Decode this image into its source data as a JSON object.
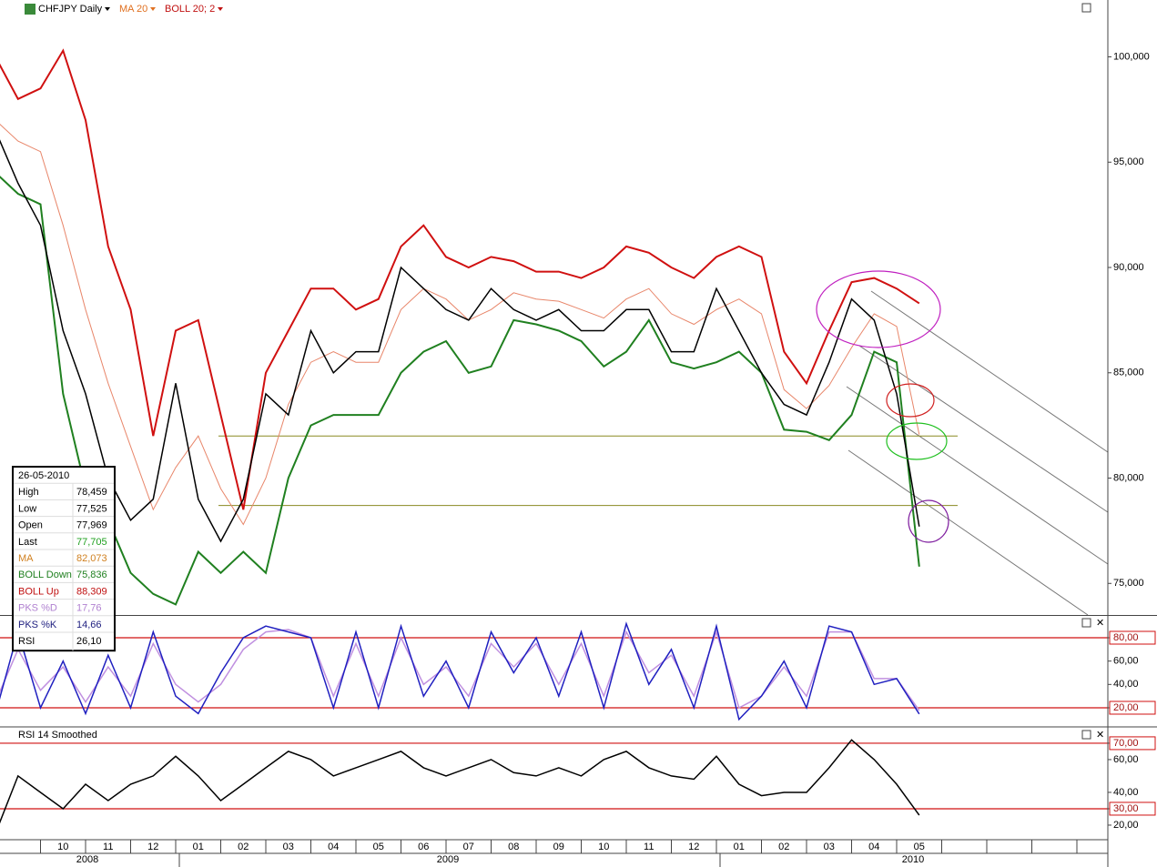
{
  "toolbar": {
    "symbol": "CHFJPY Daily",
    "indicators": [
      "MA 20",
      "BOLL 20; 2"
    ]
  },
  "data_window": {
    "date": "26-05-2010",
    "rows": [
      [
        "High",
        "78,459"
      ],
      [
        "Low",
        "77,525"
      ],
      [
        "Open",
        "77,969"
      ],
      [
        "Last",
        "77,705"
      ],
      [
        "MA",
        "82,073"
      ],
      [
        "BOLL Down",
        "75,836"
      ],
      [
        "BOLL Up",
        "88,309"
      ],
      [
        "PKS %D",
        "17,76"
      ],
      [
        "PKS %K",
        "14,66"
      ],
      [
        "RSI",
        "26,10"
      ]
    ]
  },
  "time_axis": {
    "years": [
      "2008",
      "2009",
      "2010"
    ]
  },
  "chart_data": [
    {
      "type": "line",
      "categories": [
        null,
        null,
        null,
        "10",
        null,
        "11",
        null,
        "12",
        null,
        "01",
        null,
        "02",
        null,
        "03",
        null,
        "04",
        null,
        "05",
        null,
        "06",
        null,
        "07",
        null,
        "08",
        null,
        "09",
        null,
        "10",
        null,
        "11",
        null,
        "12",
        null,
        "01",
        null,
        "02",
        null,
        "03",
        null,
        "04",
        null,
        "05"
      ],
      "series": [
        {
          "name": "BOLL Up",
          "color": "#d01010",
          "values": [
            100,
            98,
            98.5,
            100.3,
            97,
            91,
            88,
            82,
            87,
            87.5,
            83,
            78.5,
            85,
            87,
            89,
            89,
            88,
            88.5,
            91,
            92,
            90.5,
            90,
            90.5,
            90.3,
            89.8,
            89.8,
            89.5,
            90,
            91,
            90.7,
            90,
            89.5,
            90.5,
            91,
            90.5,
            86,
            84.5,
            87,
            89.3,
            89.5,
            89,
            88.3
          ]
        },
        {
          "name": "BOLL Down",
          "color": "#208020",
          "values": [
            94.5,
            93.5,
            93,
            84,
            79.5,
            78,
            75.5,
            74.5,
            74,
            76.5,
            75.5,
            76.5,
            75.5,
            80,
            82.5,
            83,
            83,
            83,
            85,
            86,
            86.5,
            85,
            85.3,
            87.5,
            87.3,
            87,
            86.5,
            85.3,
            86,
            87.5,
            85.5,
            85.2,
            85.5,
            86,
            85,
            82.3,
            82.2,
            81.8,
            83,
            86,
            85.5,
            75.8
          ]
        },
        {
          "name": "MA",
          "color": "#e8866a",
          "values": [
            97,
            96,
            95.5,
            92,
            88,
            84.5,
            81.5,
            78.5,
            80.5,
            82,
            79.5,
            77.8,
            80,
            83.5,
            85.5,
            86,
            85.5,
            85.5,
            88,
            89,
            88.5,
            87.5,
            88,
            88.8,
            88.5,
            88.4,
            88,
            87.6,
            88.5,
            89,
            87.8,
            87.3,
            88,
            88.5,
            87.8,
            84.2,
            83.3,
            84.4,
            86.2,
            87.8,
            87.2,
            82.07
          ]
        },
        {
          "name": "Last",
          "color": "#000000",
          "values": [
            96.5,
            94,
            92,
            87,
            84,
            80,
            78,
            79,
            84.5,
            79,
            77,
            79,
            84,
            83,
            87,
            85,
            86,
            86,
            90,
            89,
            88,
            87.5,
            89,
            88,
            87.5,
            88,
            87,
            87,
            88,
            88,
            86,
            86,
            89,
            87,
            85,
            83.5,
            83,
            85.5,
            88.5,
            87.5,
            84,
            77.7
          ]
        }
      ],
      "levels": [
        82,
        78.7
      ],
      "ylim": [
        73.5,
        102.7
      ],
      "yticks": [
        {
          "value": 75,
          "label": "75,000"
        },
        {
          "value": 80,
          "label": "80,000"
        },
        {
          "value": 85,
          "label": "85,000"
        },
        {
          "value": 90,
          "label": "90,000"
        },
        {
          "value": 95,
          "label": "95,000"
        },
        {
          "value": 100,
          "label": "100,000"
        }
      ]
    },
    {
      "type": "line",
      "series": [
        {
          "name": "PKS %D",
          "color": "#c090e0",
          "values": [
            25,
            70,
            35,
            55,
            25,
            55,
            30,
            75,
            40,
            25,
            40,
            70,
            85,
            87,
            80,
            30,
            75,
            30,
            80,
            40,
            55,
            30,
            75,
            55,
            75,
            40,
            75,
            30,
            85,
            50,
            65,
            30,
            85,
            20,
            30,
            55,
            30,
            85,
            85,
            45,
            45,
            17.76
          ]
        },
        {
          "name": "PKS %K",
          "color": "#2020c0",
          "values": [
            15,
            85,
            20,
            60,
            15,
            65,
            20,
            85,
            30,
            15,
            50,
            80,
            90,
            85,
            80,
            20,
            85,
            20,
            90,
            30,
            60,
            20,
            85,
            50,
            80,
            30,
            85,
            20,
            92,
            40,
            70,
            20,
            90,
            10,
            30,
            60,
            20,
            90,
            85,
            40,
            45,
            14.66
          ]
        }
      ],
      "levels": [
        80,
        20
      ],
      "ylim": [
        4.4,
        98.7
      ],
      "yticks": [
        {
          "value": 20,
          "label": "20,00"
        },
        {
          "value": 40,
          "label": "40,00"
        },
        {
          "value": 60,
          "label": "60,00"
        },
        {
          "value": 80,
          "label": "80,00"
        }
      ]
    },
    {
      "type": "line",
      "title": "RSI 14 Smoothed",
      "series": [
        {
          "name": "RSI",
          "color": "#000000",
          "values": [
            15,
            50,
            40,
            30,
            45,
            35,
            45,
            50,
            62,
            50,
            35,
            45,
            55,
            65,
            60,
            50,
            55,
            60,
            65,
            55,
            50,
            55,
            60,
            52,
            50,
            55,
            50,
            60,
            65,
            55,
            50,
            48,
            62,
            45,
            38,
            40,
            40,
            55,
            72,
            60,
            45,
            26.1
          ]
        }
      ],
      "levels": [
        70,
        30
      ],
      "ylim": [
        11.1,
        79.4
      ],
      "yticks": [
        {
          "value": 20,
          "label": "20,00"
        },
        {
          "value": 30,
          "label": "30,00"
        },
        {
          "value": 40,
          "label": "40,00"
        },
        {
          "value": 60,
          "label": "60,00"
        },
        {
          "value": 70,
          "label": "70,00"
        }
      ]
    }
  ]
}
